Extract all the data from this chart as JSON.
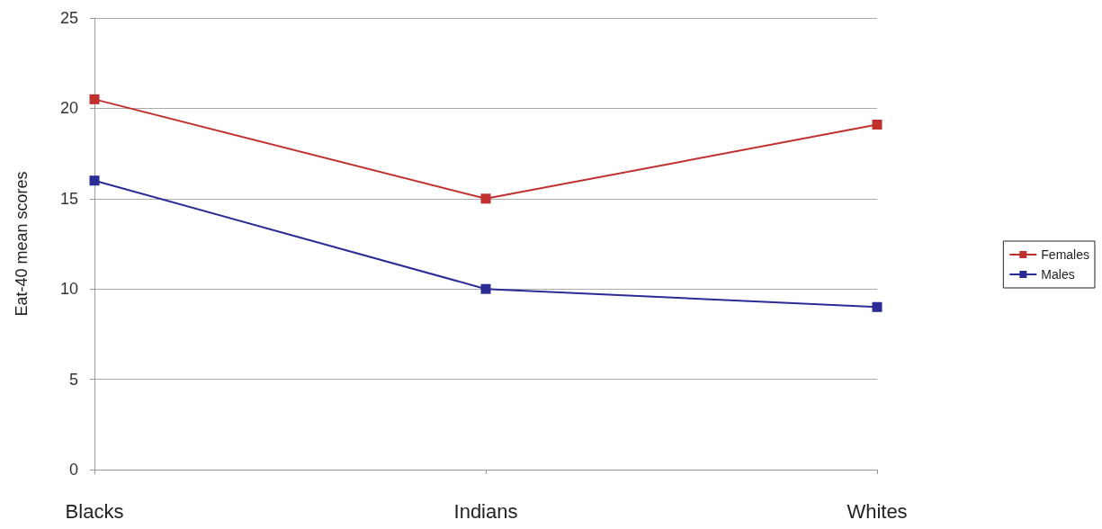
{
  "chart_data": {
    "type": "line",
    "ylabel": "Eat-40 mean scores",
    "categories": [
      "Blacks",
      "Indians",
      "Whites"
    ],
    "series": [
      {
        "name": "Females",
        "color": "#c0302f",
        "values": [
          20.5,
          15,
          19.1
        ]
      },
      {
        "name": "Males",
        "color": "#2b2b95",
        "values": [
          16,
          10,
          9
        ]
      }
    ],
    "ylim": [
      0,
      25
    ],
    "yticks": [
      0,
      5,
      10,
      15,
      20,
      25
    ],
    "grid": "y",
    "legend": "right",
    "marker": "square",
    "line_style": "solid"
  }
}
